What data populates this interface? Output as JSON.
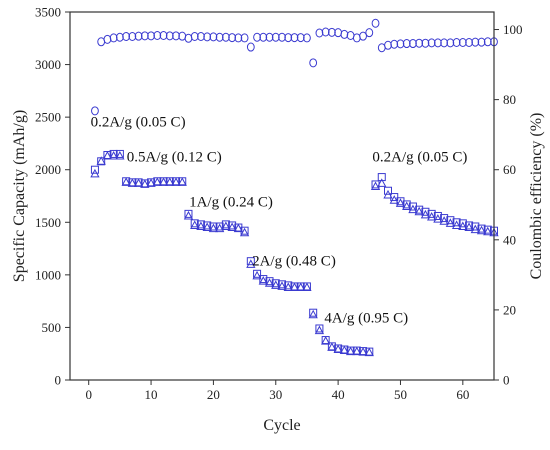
{
  "chart_data": {
    "type": "scatter",
    "title": "",
    "xlabel": "Cycle",
    "ylabel": "Specific Capacity (mAh/g)",
    "y2label": "Coulombic efficiency (%)",
    "xlim": [
      -3,
      65
    ],
    "ylim": [
      0,
      3500
    ],
    "y2lim": [
      0,
      105
    ],
    "xticks": [
      0,
      10,
      20,
      30,
      40,
      50,
      60
    ],
    "yticks": [
      0,
      500,
      1000,
      1500,
      2000,
      2500,
      3000,
      3500
    ],
    "y2ticks": [
      0,
      20,
      40,
      60,
      80,
      100
    ],
    "grid": false,
    "colors": {
      "markers": "#3a3ad0",
      "axes": "#333333"
    },
    "series": [
      {
        "marker": "circle",
        "axis": "right",
        "x": [
          1,
          2,
          3,
          4,
          5,
          6,
          7,
          8,
          9,
          10,
          11,
          12,
          13,
          14,
          15,
          16,
          17,
          18,
          19,
          20,
          21,
          22,
          23,
          24,
          25,
          26,
          27,
          28,
          29,
          30,
          31,
          32,
          33,
          34,
          35,
          36,
          37,
          38,
          39,
          40,
          41,
          42,
          43,
          44,
          45,
          46,
          47,
          48,
          49,
          50,
          51,
          52,
          53,
          54,
          55,
          56,
          57,
          58,
          59,
          60,
          61,
          62,
          63,
          64,
          65
        ],
        "values": [
          76.8,
          96.5,
          97.2,
          97.6,
          97.8,
          98.0,
          98.0,
          98.1,
          98.2,
          98.2,
          98.3,
          98.3,
          98.2,
          98.2,
          98.1,
          97.5,
          98.0,
          98.0,
          97.9,
          97.9,
          97.8,
          97.8,
          97.7,
          97.6,
          97.6,
          95.0,
          97.8,
          97.8,
          97.8,
          97.8,
          97.8,
          97.7,
          97.7,
          97.7,
          97.6,
          90.5,
          99.0,
          99.3,
          99.2,
          99.1,
          98.6,
          98.3,
          97.6,
          98.1,
          99.1,
          101.8,
          94.8,
          95.5,
          95.8,
          95.9,
          96.0,
          96.0,
          96.1,
          96.1,
          96.2,
          96.2,
          96.2,
          96.2,
          96.3,
          96.3,
          96.3,
          96.4,
          96.4,
          96.5,
          96.5
        ]
      },
      {
        "marker": "square",
        "axis": "left",
        "x": [
          1,
          2,
          3,
          4,
          5,
          6,
          7,
          8,
          9,
          10,
          11,
          12,
          13,
          14,
          15,
          16,
          17,
          18,
          19,
          20,
          21,
          22,
          23,
          24,
          25,
          26,
          27,
          28,
          29,
          30,
          31,
          32,
          33,
          34,
          35,
          36,
          37,
          38,
          39,
          40,
          41,
          42,
          43,
          44,
          45,
          46,
          47,
          48,
          49,
          50,
          51,
          52,
          53,
          54,
          55,
          56,
          57,
          58,
          59,
          60,
          61,
          62,
          63,
          64,
          65
        ],
        "values": [
          2000,
          2080,
          2140,
          2150,
          2150,
          1890,
          1880,
          1880,
          1870,
          1880,
          1890,
          1890,
          1890,
          1890,
          1890,
          1580,
          1490,
          1480,
          1470,
          1460,
          1460,
          1480,
          1470,
          1450,
          1420,
          1130,
          1010,
          960,
          940,
          920,
          910,
          900,
          890,
          890,
          890,
          640,
          490,
          380,
          320,
          300,
          290,
          280,
          280,
          275,
          270,
          1860,
          1930,
          1800,
          1740,
          1700,
          1670,
          1650,
          1620,
          1600,
          1580,
          1560,
          1540,
          1520,
          1500,
          1490,
          1470,
          1460,
          1440,
          1430,
          1420
        ]
      },
      {
        "marker": "triangle",
        "axis": "left",
        "x": [
          1,
          2,
          3,
          4,
          5,
          6,
          7,
          8,
          9,
          10,
          11,
          12,
          13,
          14,
          15,
          16,
          17,
          18,
          19,
          20,
          21,
          22,
          23,
          24,
          25,
          26,
          27,
          28,
          29,
          30,
          31,
          32,
          33,
          34,
          35,
          36,
          37,
          38,
          39,
          40,
          41,
          42,
          43,
          44,
          45,
          46,
          47,
          48,
          49,
          50,
          51,
          52,
          53,
          54,
          55,
          56,
          57,
          58,
          59,
          60,
          61,
          62,
          63,
          64,
          65
        ],
        "values": [
          1960,
          2080,
          2130,
          2130,
          2130,
          1880,
          1870,
          1870,
          1860,
          1870,
          1880,
          1880,
          1880,
          1880,
          1880,
          1560,
          1470,
          1460,
          1450,
          1440,
          1440,
          1460,
          1450,
          1440,
          1400,
          1100,
          990,
          940,
          920,
          900,
          890,
          880,
          880,
          880,
          880,
          620,
          470,
          370,
          310,
          290,
          280,
          270,
          270,
          265,
          260,
          1840,
          1870,
          1760,
          1710,
          1680,
          1650,
          1620,
          1600,
          1570,
          1550,
          1530,
          1510,
          1490,
          1470,
          1460,
          1450,
          1430,
          1420,
          1410,
          1400
        ]
      }
    ],
    "annotations": [
      {
        "text": "0.2A/g (0.05 C)",
        "x": 0.3,
        "y": 2410
      },
      {
        "text": "0.5A/g (0.12 C)",
        "x": 6.1,
        "y": 2080
      },
      {
        "text": "1A/g (0.24 C)",
        "x": 16.1,
        "y": 1650
      },
      {
        "text": "2A/g (0.48 C)",
        "x": 26.2,
        "y": 1090
      },
      {
        "text": "4A/g (0.95 C)",
        "x": 37.8,
        "y": 545
      },
      {
        "text": "0.2A/g (0.05 C)",
        "x": 45.5,
        "y": 2080
      }
    ]
  }
}
